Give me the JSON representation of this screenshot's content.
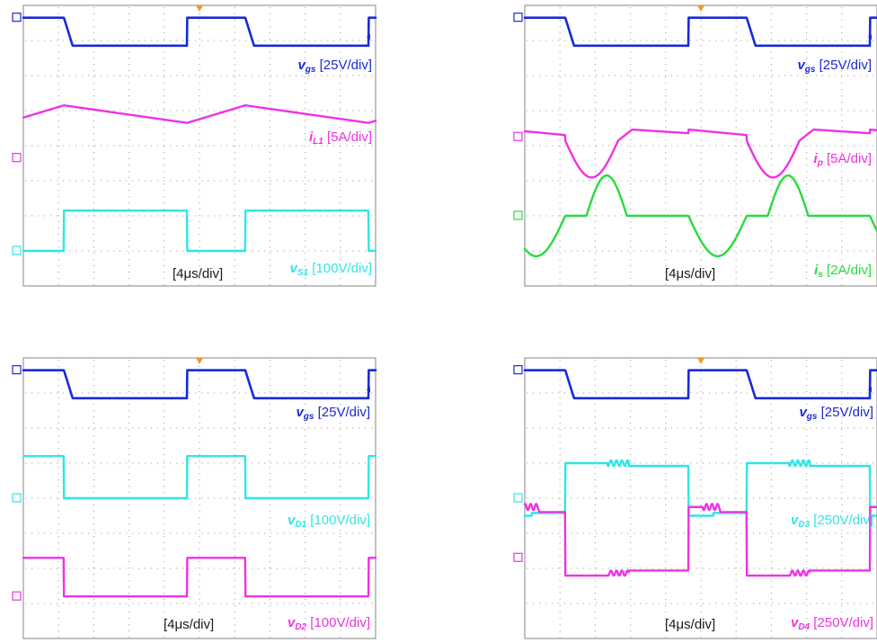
{
  "colors": {
    "ch1": "#1a2ad6",
    "magenta": "#ee32e6",
    "cyan": "#2ee6e6",
    "green": "#26dc3a"
  },
  "chart_data": [
    {
      "type": "line",
      "panel": "top-left",
      "time_scale": "[4μs/div]",
      "series": [
        {
          "name": "v_gs",
          "symbol": "v",
          "subscript": "gs",
          "scale": "[25V/div]",
          "color": "ch1",
          "marker": "1",
          "waveform": "gate"
        },
        {
          "name": "i_L1",
          "symbol": "i",
          "subscript": "L1",
          "scale": "[5A/div]",
          "color": "magenta",
          "marker": "M",
          "waveform": "triangle"
        },
        {
          "name": "v_S1",
          "symbol": "v",
          "subscript": "S1",
          "scale": "[100V/div]",
          "color": "cyan",
          "marker": "2",
          "waveform": "switch_voltage"
        }
      ]
    },
    {
      "type": "line",
      "panel": "top-right",
      "time_scale": "[4μs/div]",
      "series": [
        {
          "name": "v_gs",
          "symbol": "v",
          "subscript": "gs",
          "scale": "[25V/div]",
          "color": "ch1",
          "marker": "1",
          "waveform": "gate"
        },
        {
          "name": "i_p",
          "symbol": "i",
          "subscript": "p",
          "scale": "[5A/div]",
          "color": "magenta",
          "marker": "3",
          "waveform": "resonant_primary"
        },
        {
          "name": "i_s",
          "symbol": "i",
          "subscript": "s",
          "scale": "[2A/div]",
          "color": "green",
          "marker": "4",
          "waveform": "resonant_secondary"
        }
      ]
    },
    {
      "type": "line",
      "panel": "bottom-left",
      "time_scale": "[4μs/div]",
      "series": [
        {
          "name": "v_gs",
          "symbol": "v",
          "subscript": "gs",
          "scale": "[25V/div]",
          "color": "ch1",
          "marker": "1",
          "waveform": "gate"
        },
        {
          "name": "v_D1",
          "symbol": "v",
          "subscript": "D1",
          "scale": "[100V/div]",
          "color": "cyan",
          "marker": "2",
          "waveform": "diode_on_first"
        },
        {
          "name": "v_D2",
          "symbol": "v",
          "subscript": "D2",
          "scale": "[100V/div]",
          "color": "magenta",
          "marker": "M",
          "waveform": "diode_on_first"
        }
      ]
    },
    {
      "type": "line",
      "panel": "bottom-right",
      "time_scale": "[4μs/div]",
      "series": [
        {
          "name": "v_gs",
          "symbol": "v",
          "subscript": "gs",
          "scale": "[25V/div]",
          "color": "ch1",
          "marker": "1",
          "waveform": "gate"
        },
        {
          "name": "v_D3",
          "symbol": "v",
          "subscript": "D3",
          "scale": "[250V/div]",
          "color": "cyan",
          "marker": "C",
          "waveform": "diode_rising"
        },
        {
          "name": "v_D4",
          "symbol": "v",
          "subscript": "D4",
          "scale": "[250V/div]",
          "color": "magenta",
          "marker": "3",
          "waveform": "diode_falling"
        }
      ]
    }
  ]
}
